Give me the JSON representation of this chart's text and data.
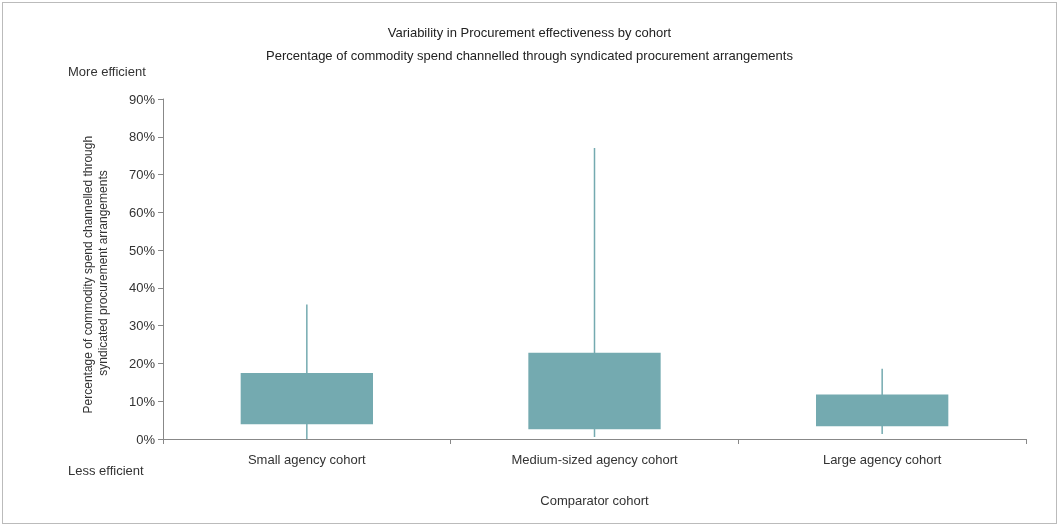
{
  "chart_data": {
    "type": "bar",
    "title": "Variability in Procurement effectiveness by cohort",
    "subtitle": "Percentage of commodity spend channelled through syndicated procurement arrangements",
    "xlabel": "Comparator cohort",
    "ylabel": "Percentage of commodity spend channelled through syndicated procurement arrangements",
    "annotations": [
      "More efficient",
      "Less efficient"
    ],
    "categories": [
      "Small agency cohort",
      "Medium-sized agency cohort",
      "Large agency cohort"
    ],
    "base": [
      3.9,
      2.6,
      3.4
    ],
    "values": [
      13.6,
      20.2,
      8.4
    ],
    "errors": [
      [
        0,
        35.6
      ],
      [
        0.5,
        77
      ],
      [
        1.3,
        18.6
      ]
    ],
    "color": "#74aab0",
    "ylim": [
      0,
      90
    ],
    "yticks": [
      {
        "value": 0,
        "label": "0%"
      },
      {
        "value": 10,
        "label": "10%"
      },
      {
        "value": 20,
        "label": "20%"
      },
      {
        "value": 30,
        "label": "30%"
      },
      {
        "value": 40,
        "label": "40%"
      },
      {
        "value": 50,
        "label": "50%"
      },
      {
        "value": 60,
        "label": "60%"
      },
      {
        "value": 70,
        "label": "70%"
      },
      {
        "value": 80,
        "label": "80%"
      },
      {
        "value": 90,
        "label": "90%"
      }
    ],
    "grid": false
  }
}
